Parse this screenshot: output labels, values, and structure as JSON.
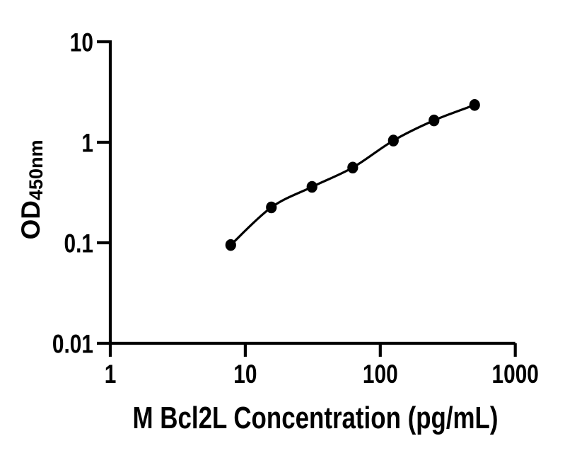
{
  "figure": {
    "background_color": "#ffffff",
    "foreground_color": "#000000"
  },
  "chart_data": {
    "type": "scatter",
    "fitted_line": true,
    "title": "",
    "xlabel": "M Bcl2L Concentration (pg/mL)",
    "ylabel_main": "OD",
    "ylabel_sub": "450nm",
    "x_scale": "log",
    "y_scale": "log",
    "xlim": [
      1,
      1000
    ],
    "ylim": [
      0.01,
      10
    ],
    "x_ticks": [
      1,
      10,
      100,
      1000
    ],
    "x_tick_labels": [
      "1",
      "10",
      "100",
      "1000"
    ],
    "y_ticks": [
      10,
      1,
      0.1,
      0.01
    ],
    "y_tick_labels": [
      "10",
      "1",
      "0.1",
      "0.01"
    ],
    "grid": false,
    "legend": null,
    "marker_color": "#000000",
    "line_color": "#000000",
    "x": [
      7.8,
      15.6,
      31.2,
      62.5,
      125,
      250,
      500
    ],
    "y": [
      0.095,
      0.225,
      0.36,
      0.56,
      1.04,
      1.65,
      2.35
    ]
  }
}
